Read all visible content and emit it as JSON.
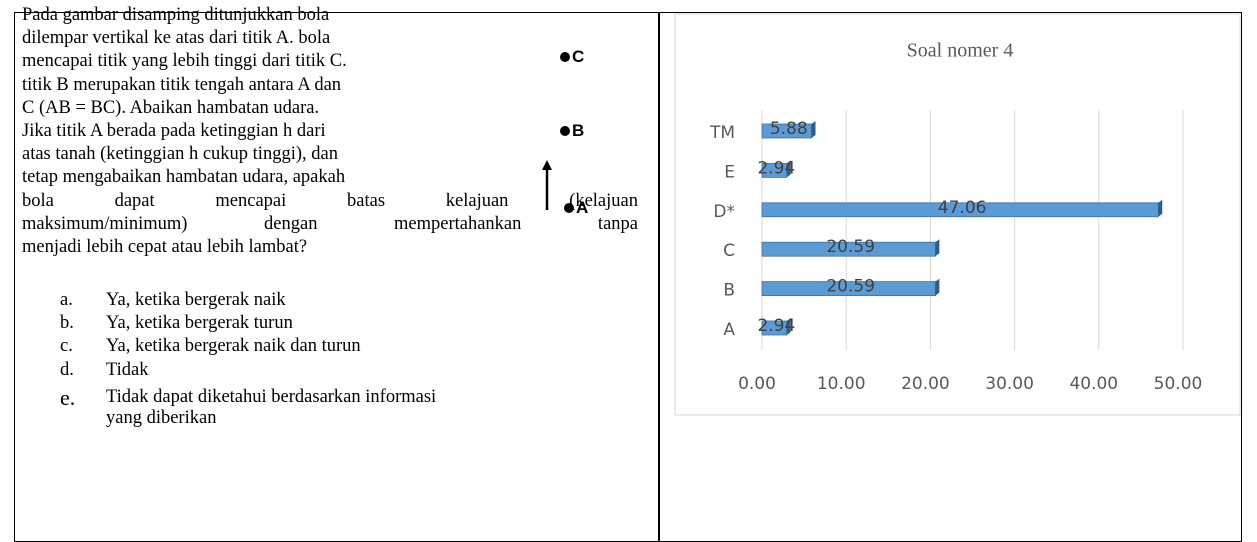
{
  "question": {
    "lines": [
      "Pada gambar disamping ditunjukkan bola",
      "dilempar vertikal ke atas dari titik A. bola",
      "mencapai titik yang lebih tinggi dari titik C.",
      "titik B merupakan titik tengah antara A dan",
      "C (AB = BC). Abaikan hambatan udara.",
      "Jika titik A berada pada ketinggian h dari",
      "atas tanah (ketinggian h cukup tinggi), dan",
      "tetap mengabaikan hambatan udara, apakah",
      "bola dapat mencapai batas kelajuan (kelajuan",
      "maksimum/minimum) dengan mempertahankan tanpa",
      "menjadi lebih cepat atau lebih lambat?"
    ],
    "options": [
      {
        "letter": "a.",
        "text": "Ya, ketika bergerak naik"
      },
      {
        "letter": "b.",
        "text": "Ya, ketika bergerak turun"
      },
      {
        "letter": "c.",
        "text": "Ya, ketika bergerak naik dan turun"
      },
      {
        "letter": "d.",
        "text": "Tidak"
      },
      {
        "letter": "e.",
        "text": "Tidak dapat diketahui berdasarkan informasi"
      }
    ],
    "option_continuation": "yang diberikan",
    "diagram": {
      "points": [
        "C",
        "B",
        "A"
      ]
    }
  },
  "chart_data": {
    "type": "bar",
    "orientation": "horizontal",
    "title": "Soal nomer 4",
    "categories": [
      "A",
      "B",
      "C",
      "D*",
      "E",
      "TM"
    ],
    "values": [
      2.94,
      20.59,
      20.59,
      47.06,
      2.94,
      5.88
    ],
    "color": "#5b9bd5",
    "xlim": [
      0,
      50
    ],
    "xticks": [
      {
        "value": 0,
        "label": "0.00"
      },
      {
        "value": 10,
        "label": "10.00"
      },
      {
        "value": 20,
        "label": "20.00"
      },
      {
        "value": 30,
        "label": "30.00"
      },
      {
        "value": 40,
        "label": "40.00"
      },
      {
        "value": 50,
        "label": "50.00"
      }
    ],
    "grid": true
  }
}
